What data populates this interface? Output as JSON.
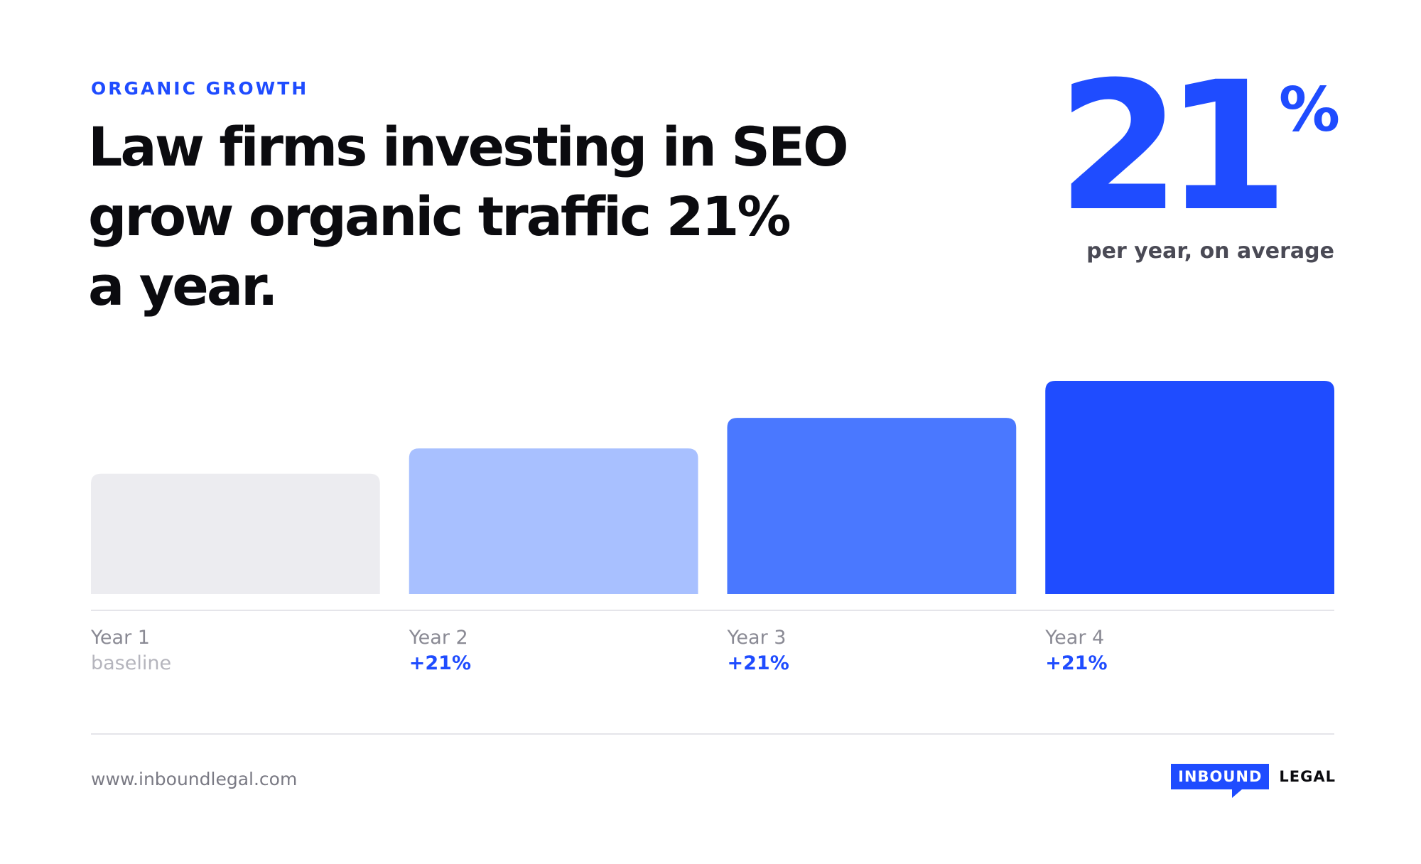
{
  "eyebrow": "ORGANIC GROWTH",
  "headline": {
    "line1": "Law firms investing in SEO",
    "line2": "grow organic traffic 21%",
    "line3": "a year."
  },
  "stat": {
    "number": "21",
    "percent": "%",
    "caption": "per year, on average"
  },
  "colors": {
    "accent": "#1f4cff",
    "bars": [
      "#ececf0",
      "#a8c0ff",
      "#4a78ff",
      "#1f4cff"
    ]
  },
  "chart_data": {
    "type": "bar",
    "categories": [
      "Year 1",
      "Year 2",
      "Year 3",
      "Year 4"
    ],
    "sublabels": [
      "baseline",
      "+21%",
      "+21%",
      "+21%"
    ],
    "values": [
      100,
      121,
      146.4,
      177.2
    ],
    "ylim": [
      0,
      177.2
    ],
    "grid": false,
    "legend": "none"
  },
  "footer": {
    "url": "www.inboundlegal.com",
    "logo_box": "INBOUND",
    "logo_text": "LEGAL"
  }
}
